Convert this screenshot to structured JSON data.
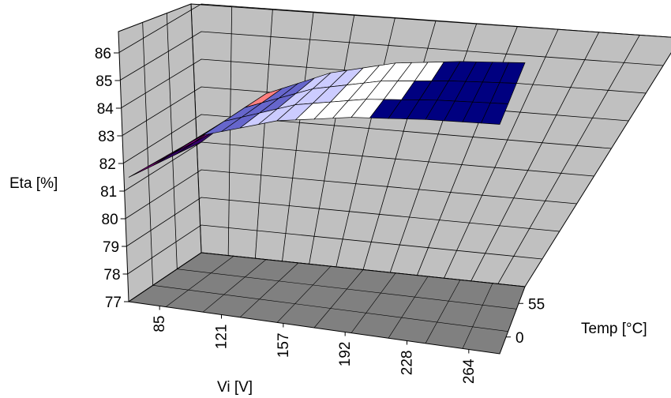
{
  "chart_data": {
    "type": "surface",
    "title": "",
    "xlabel": "Vi [V]",
    "ylabel": "Temp [°C]",
    "zlabel": "Eta [%]",
    "x_ticks": [
      "85",
      "121",
      "157",
      "192",
      "228",
      "264"
    ],
    "y_ticks": [
      "0",
      "55"
    ],
    "z_ticks": [
      "77",
      "78",
      "79",
      "80",
      "81",
      "82",
      "83",
      "84",
      "85",
      "86"
    ],
    "zlim": [
      77,
      86
    ],
    "grid": true,
    "colors": {
      "wall": "#c0c0c0",
      "floor": "#808080",
      "grid": "#000000",
      "bands": [
        "#330066",
        "#800080",
        "#ff8080",
        "#6666cc",
        "#ccccff",
        "#ffffff",
        "#000080"
      ]
    },
    "vi": [
      85,
      121,
      157,
      192,
      228,
      264
    ],
    "temp": [
      0,
      55
    ],
    "eta": [
      [
        81.5,
        83.4,
        84.3,
        84.8,
        85.1,
        85.3
      ],
      [
        81.0,
        83.0,
        84.0,
        84.6,
        84.9,
        85.1
      ]
    ]
  }
}
